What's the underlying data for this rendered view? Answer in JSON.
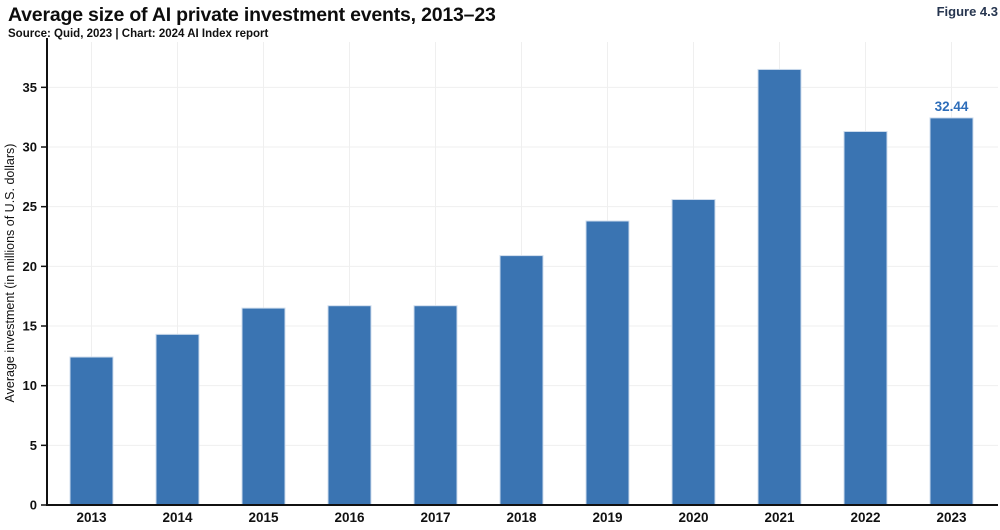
{
  "header": {
    "title": "Average size of AI private investment events, 2013–23",
    "source": "Source: Quid, 2023 | Chart: 2024 AI Index report",
    "figure_label": "Figure 4.3"
  },
  "chart_data": {
    "type": "bar",
    "title": "Average size of AI private investment events, 2013–23",
    "subtitle": "Source: Quid, 2023 | Chart: 2024 AI Index report",
    "figure_label": "Figure 4.3",
    "categories": [
      "2013",
      "2014",
      "2015",
      "2016",
      "2017",
      "2018",
      "2019",
      "2020",
      "2021",
      "2022",
      "2023"
    ],
    "values": [
      12.4,
      14.3,
      16.5,
      16.7,
      16.7,
      20.9,
      23.8,
      25.6,
      36.5,
      31.3,
      32.44
    ],
    "value_labels": {
      "2023": "32.44"
    },
    "xlabel": "",
    "ylabel": "Average investment (in millions of U.S. dollars)",
    "yticks": [
      0,
      5,
      10,
      15,
      20,
      25,
      30,
      35
    ],
    "ylim": [
      0,
      38.8
    ],
    "grid": "light horizontal and vertical gridlines",
    "legend": "none",
    "colors": {
      "bar_fill": "#3a74b2",
      "bar_edge": "#cfdded",
      "value_label": "#2d6db9",
      "axis": "#111111",
      "gridline": "#efefef",
      "tick_label": "#111111",
      "figure_label": "#26354f"
    }
  }
}
